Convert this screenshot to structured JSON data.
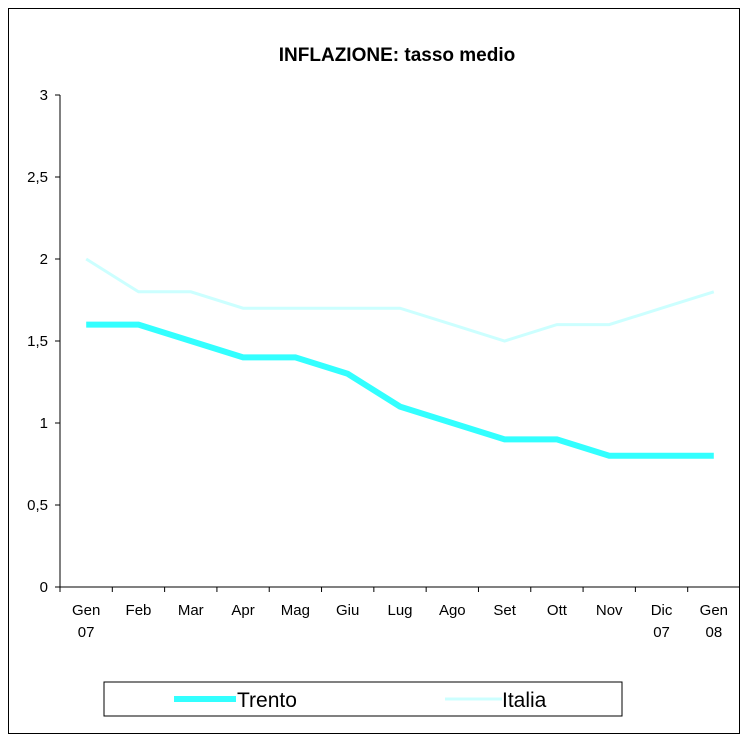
{
  "chart_data": {
    "type": "line",
    "title": "INFLAZIONE: tasso medio",
    "xlabel": "",
    "ylabel": "",
    "categories": [
      [
        "Gen",
        "07"
      ],
      [
        "Feb"
      ],
      [
        "Mar"
      ],
      [
        "Apr"
      ],
      [
        "Mag"
      ],
      [
        "Giu"
      ],
      [
        "Lug"
      ],
      [
        "Ago"
      ],
      [
        "Set"
      ],
      [
        "Ott"
      ],
      [
        "Nov"
      ],
      [
        "Dic",
        "07"
      ],
      [
        "Gen",
        "08"
      ]
    ],
    "yticks": [
      "0",
      "0,5",
      "1",
      "1,5",
      "2",
      "2,5",
      "3"
    ],
    "ylim": [
      0,
      3
    ],
    "grid": false,
    "legend_position": "bottom",
    "series": [
      {
        "name": "Trento",
        "color": "#33ffff",
        "values": [
          1.6,
          1.6,
          1.5,
          1.4,
          1.4,
          1.3,
          1.1,
          1.0,
          0.9,
          0.9,
          0.8,
          0.8,
          0.8
        ]
      },
      {
        "name": "Italia",
        "color": "#ccffff",
        "values": [
          2.0,
          1.8,
          1.8,
          1.7,
          1.7,
          1.7,
          1.7,
          1.6,
          1.5,
          1.6,
          1.6,
          1.7,
          1.8
        ]
      }
    ]
  }
}
